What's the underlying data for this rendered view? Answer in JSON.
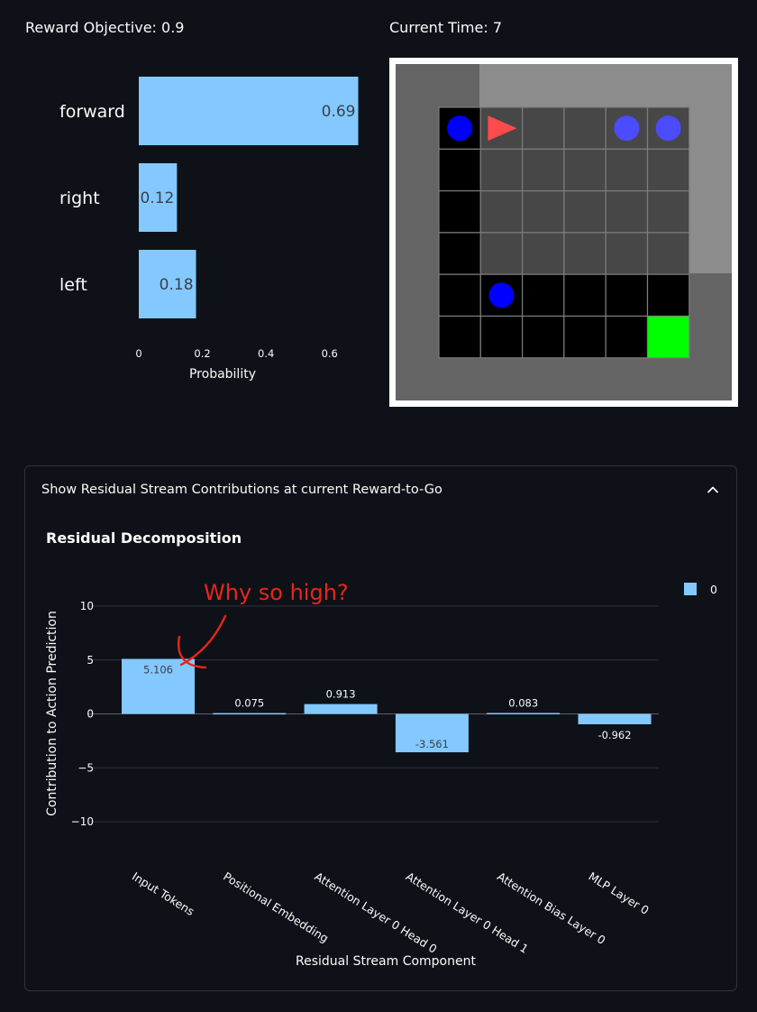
{
  "header": {
    "reward_objective": "Reward Objective: 0.9",
    "current_time": "Current Time: 7"
  },
  "icons": {
    "expander_toggle": "chevron-up-icon"
  },
  "colors": {
    "bar": "#83c9ff",
    "background": "#0e1117",
    "annotation": "#e8261a",
    "agent": "#ff4b4b",
    "ball": "#0000ff",
    "ball_dim": "#4b4bff",
    "goal": "#00ff00"
  },
  "grid": {
    "rows": [
      [
        "ball",
        "agent",
        "floor",
        "floor",
        "ball_dim",
        "ball_dim"
      ],
      [
        "black",
        "floor",
        "floor",
        "floor",
        "floor",
        "floor"
      ],
      [
        "black",
        "floor",
        "floor",
        "floor",
        "floor",
        "floor"
      ],
      [
        "black",
        "floor",
        "floor",
        "floor",
        "floor",
        "floor"
      ],
      [
        "black",
        "ball",
        "black",
        "black",
        "black",
        "black"
      ],
      [
        "black",
        "black",
        "black",
        "black",
        "black",
        "goal"
      ]
    ]
  },
  "expander": {
    "title": "Show Residual Stream Contributions at current Reward-to-Go"
  },
  "residual": {
    "section_title": "Residual Decomposition",
    "annotation": "Why so high?"
  },
  "chart_data": [
    {
      "type": "bar",
      "orientation": "horizontal",
      "categories": [
        "forward",
        "right",
        "left"
      ],
      "values": [
        0.69,
        0.12,
        0.18
      ],
      "value_labels": [
        "0.69",
        "0.12",
        "0.18"
      ],
      "xlabel": "Probability",
      "xticks": [
        "0",
        "0.2",
        "0.4",
        "0.6"
      ],
      "xlim": [
        0,
        0.69
      ]
    },
    {
      "type": "bar",
      "categories": [
        "Input Tokens",
        "Positional Embedding",
        "Attention Layer 0 Head 0",
        "Attention Layer 0 Head 1",
        "Attention Bias Layer 0",
        "MLP Layer 0"
      ],
      "series": [
        {
          "name": "0",
          "values": [
            5.106,
            0.075,
            0.913,
            -3.561,
            0.083,
            -0.962
          ]
        }
      ],
      "value_labels": [
        "5.106",
        "0.075",
        "0.913",
        "-3.561",
        "0.083",
        "-0.962"
      ],
      "xlabel": "Residual Stream Component",
      "ylabel": "Contribution to Action Prediction",
      "yticks": [
        "10",
        "5",
        "0",
        "−5",
        "−10"
      ],
      "ylim": [
        -10,
        10
      ],
      "legend": "top-right"
    }
  ]
}
